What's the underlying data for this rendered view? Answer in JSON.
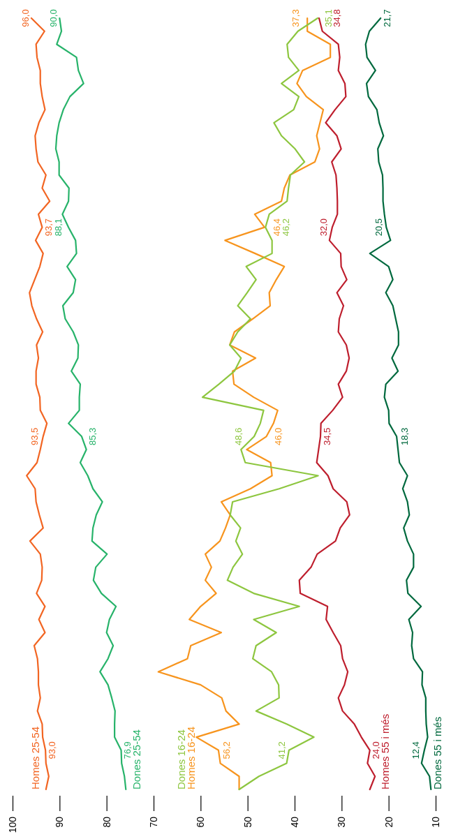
{
  "chart_data": {
    "type": "line",
    "orientation": "horizontal",
    "categories": [
      null,
      null,
      null,
      null,
      null,
      null,
      null,
      null,
      null,
      null,
      null,
      null,
      null,
      null,
      null,
      null,
      null,
      null,
      null,
      null,
      null,
      null,
      null,
      null,
      null,
      null,
      null,
      null,
      null,
      null,
      null,
      null,
      null,
      null,
      null,
      null,
      null,
      null,
      null,
      null,
      null,
      null,
      null,
      null,
      null,
      null,
      null,
      null,
      null,
      null,
      null,
      null,
      null,
      null,
      null,
      null,
      null,
      null,
      null,
      null
    ],
    "xlim": [
      100,
      10
    ],
    "xticks": [
      100,
      90,
      80,
      70,
      60,
      50,
      40,
      30,
      20,
      10
    ],
    "tick_labels": "x",
    "series": [
      {
        "name": "Homes 25-54",
        "color": "#f26522",
        "values": [
          96.0,
          93.2,
          95.0,
          94.8,
          94.1,
          94.1,
          93.7,
          93.1,
          94.4,
          95.2,
          95.0,
          94.6,
          92.9,
          93.7,
          92.1,
          94.5,
          93.7,
          95.1,
          93.5,
          94.2,
          95.3,
          96.4,
          95.9,
          94.9,
          93.6,
          94.9,
          94.5,
          95.0,
          95.0,
          94.2,
          94.1,
          92.7,
          93.5,
          94.1,
          94.8,
          97.0,
          95.2,
          95.0,
          94.3,
          93.5,
          96.3,
          94.1,
          93.7,
          93.8,
          94.9,
          93.1,
          94.4,
          93.1,
          95.4,
          94.7,
          94.5,
          94.5,
          94.1,
          94.7,
          93.7,
          93.6,
          93.0,
          92.9,
          92.3,
          92.9
        ],
        "value_labels": [
          "96,0",
          null,
          null,
          null,
          null,
          null,
          null,
          null,
          null,
          null,
          null,
          null,
          null,
          null,
          null,
          null,
          "93,7",
          null,
          null,
          null,
          null,
          null,
          null,
          null,
          null,
          null,
          null,
          null,
          null,
          null,
          null,
          null,
          "93,5",
          null,
          null,
          null,
          null,
          null,
          null,
          null,
          null,
          null,
          null,
          null,
          null,
          null,
          null,
          null,
          null,
          null,
          null,
          null,
          null,
          null,
          null,
          null,
          "93,0",
          null,
          null,
          null
        ]
      },
      {
        "name": "Dones 25-54",
        "color": "#27b36a",
        "values": [
          90.0,
          89.6,
          90.6,
          86.4,
          86.0,
          84.9,
          87.8,
          89.2,
          90.1,
          90.6,
          90.8,
          90.1,
          90.1,
          88.0,
          88.1,
          89.4,
          88.1,
          86.6,
          86.4,
          88.4,
          86.6,
          87.1,
          89.3,
          88.8,
          87.1,
          86.0,
          86.1,
          87.5,
          85.6,
          85.8,
          85.8,
          88.1,
          85.3,
          84.3,
          85.6,
          84.0,
          82.9,
          80.9,
          82.2,
          82.9,
          83.1,
          79.9,
          82.3,
          82.8,
          81.1,
          78.0,
          79.4,
          80.0,
          78.6,
          79.7,
          81.4,
          79.7,
          78.9,
          78.2,
          78.3,
          78.3,
          76.9,
          76.8,
          76.2,
          75.9
        ],
        "value_labels": [
          "90,0",
          null,
          null,
          null,
          null,
          null,
          null,
          null,
          null,
          null,
          null,
          null,
          null,
          null,
          null,
          null,
          "88,1",
          null,
          null,
          null,
          null,
          null,
          null,
          null,
          null,
          null,
          null,
          null,
          null,
          null,
          null,
          null,
          "85,3",
          null,
          null,
          null,
          null,
          null,
          null,
          null,
          null,
          null,
          null,
          null,
          null,
          null,
          null,
          null,
          null,
          null,
          null,
          null,
          null,
          null,
          null,
          null,
          "76,9",
          null,
          null,
          null
        ]
      },
      {
        "name": "Homes 16-24",
        "color": "#f7941d",
        "values": [
          37.3,
          37.3,
          32.4,
          32.4,
          38.3,
          39.5,
          37.5,
          33.9,
          34.6,
          35.3,
          34.7,
          35.7,
          41.0,
          42.2,
          42.8,
          48.5,
          46.4,
          54.8,
          48.4,
          42.2,
          43.9,
          45.4,
          45.2,
          48.9,
          52.8,
          53.8,
          48.3,
          53.2,
          52.9,
          48.7,
          43.6,
          44.5,
          46.0,
          50.2,
          45.1,
          44.8,
          49.4,
          55.6,
          53.7,
          54.7,
          55.9,
          59.0,
          57.7,
          59.0,
          56.7,
          60.0,
          62.4,
          55.6,
          62.1,
          62.8,
          69.0,
          60.0,
          55.5,
          54.6,
          51.8,
          60.9,
          56.2,
          55.8,
          51.8,
          51.8
        ],
        "value_labels": [
          "37,3",
          null,
          null,
          null,
          null,
          null,
          null,
          null,
          null,
          null,
          null,
          null,
          null,
          null,
          null,
          null,
          "46,4",
          null,
          null,
          null,
          null,
          null,
          null,
          null,
          null,
          null,
          null,
          null,
          null,
          null,
          null,
          null,
          "46,0",
          null,
          null,
          null,
          null,
          null,
          null,
          null,
          null,
          null,
          null,
          null,
          null,
          null,
          null,
          null,
          null,
          null,
          null,
          null,
          null,
          null,
          null,
          null,
          "56,2",
          null,
          null,
          null
        ]
      },
      {
        "name": "Dones 16-24",
        "color": "#8dc63f",
        "values": [
          35.1,
          39.3,
          41.6,
          41.3,
          39.1,
          42.8,
          39.1,
          40.2,
          44.4,
          42.8,
          39.9,
          37.9,
          40.9,
          41.3,
          41.6,
          45.4,
          46.2,
          44.8,
          44.8,
          50.3,
          48.2,
          50.1,
          52.1,
          49.4,
          52.1,
          53.8,
          51.4,
          52.8,
          56.1,
          59.6,
          46.6,
          47.3,
          48.6,
          51.4,
          50.5,
          35.0,
          43.3,
          53.2,
          53.7,
          51.5,
          52.5,
          51.1,
          53.1,
          54.3,
          48.7,
          39.0,
          48.7,
          43.9,
          48.2,
          48.9,
          44.9,
          43.4,
          43.3,
          48.2,
          41.7,
          35.9,
          41.2,
          41.7,
          47.6,
          51.8
        ],
        "value_labels": [
          "35,1",
          null,
          null,
          null,
          null,
          null,
          null,
          null,
          null,
          null,
          null,
          null,
          null,
          null,
          null,
          null,
          "46,2",
          null,
          null,
          null,
          null,
          null,
          null,
          null,
          null,
          null,
          null,
          null,
          null,
          null,
          null,
          null,
          "48,6",
          null,
          null,
          null,
          null,
          null,
          null,
          null,
          null,
          null,
          null,
          null,
          null,
          null,
          null,
          null,
          null,
          null,
          null,
          null,
          null,
          null,
          null,
          null,
          "41,2",
          null,
          null,
          null
        ]
      },
      {
        "name": "Homes 55 i més",
        "color": "#be1e2d",
        "values": [
          34.8,
          34.1,
          30.7,
          30.4,
          30.7,
          29.3,
          29.1,
          31.4,
          33.4,
          31.0,
          30.1,
          32.1,
          31.2,
          31.0,
          30.9,
          30.9,
          32.0,
          32.6,
          30.2,
          30.1,
          28.9,
          31.0,
          29.6,
          30.5,
          30.7,
          29.0,
          28.4,
          29.0,
          30.7,
          29.8,
          31.9,
          34.4,
          34.5,
          34.9,
          35.3,
          32.9,
          31.8,
          28.9,
          28.3,
          30.3,
          31.3,
          35.2,
          36.5,
          39.0,
          38.8,
          33.0,
          33.3,
          31.8,
          30.2,
          29.8,
          28.7,
          29.4,
          30.7,
          29.8,
          27.3,
          25.8,
          24.0,
          24.5,
          22.9,
          24.0
        ],
        "value_labels": [
          "34,8",
          null,
          null,
          null,
          null,
          null,
          null,
          null,
          null,
          null,
          null,
          null,
          null,
          null,
          null,
          null,
          "32,0",
          null,
          null,
          null,
          null,
          null,
          null,
          null,
          null,
          null,
          null,
          null,
          null,
          null,
          null,
          null,
          "34,5",
          null,
          null,
          null,
          null,
          null,
          null,
          null,
          null,
          null,
          null,
          null,
          null,
          null,
          null,
          null,
          null,
          null,
          null,
          null,
          null,
          null,
          null,
          null,
          "24,0",
          null,
          null,
          null
        ]
      },
      {
        "name": "Dones 55 i més",
        "color": "#00693e",
        "values": [
          21.7,
          24.1,
          24.9,
          24.6,
          22.8,
          24.7,
          24.3,
          22.5,
          22.0,
          21.1,
          22.3,
          22.1,
          21.3,
          21.2,
          21.2,
          20.9,
          20.5,
          19.6,
          24.0,
          20.0,
          19.1,
          20.6,
          19.1,
          18.5,
          17.9,
          17.9,
          19.3,
          18.0,
          20.6,
          20.9,
          20.0,
          19.9,
          18.3,
          18.0,
          17.7,
          16.0,
          17.0,
          16.0,
          15.6,
          16.8,
          16.0,
          14.7,
          14.7,
          16.2,
          15.9,
          13.1,
          15.7,
          14.9,
          15.1,
          14.7,
          12.8,
          12.9,
          12.1,
          12.1,
          12.0,
          11.7,
          12.4,
          13.0,
          11.3,
          11.0
        ],
        "value_labels": [
          "21,7",
          null,
          null,
          null,
          null,
          null,
          null,
          null,
          null,
          null,
          null,
          null,
          null,
          null,
          null,
          null,
          "20,5",
          null,
          null,
          null,
          null,
          null,
          null,
          null,
          null,
          null,
          null,
          null,
          null,
          null,
          null,
          null,
          "18,3",
          null,
          null,
          null,
          null,
          null,
          null,
          null,
          null,
          null,
          null,
          null,
          null,
          null,
          null,
          null,
          null,
          null,
          null,
          null,
          null,
          null,
          null,
          null,
          "12,4",
          null,
          null,
          null
        ]
      }
    ]
  }
}
